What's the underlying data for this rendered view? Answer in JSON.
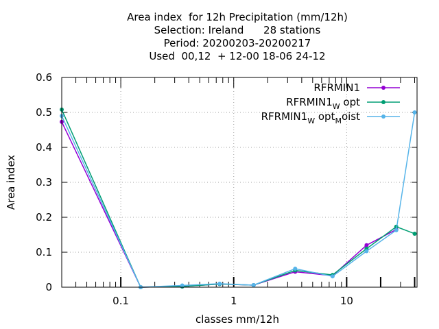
{
  "chart_data": {
    "type": "line",
    "title_lines": [
      "Area index  for 12h Precipitation (mm/12h)",
      "Selection: Ireland      28 stations",
      "Period: 20200203-20200217",
      "Used  00,12  + 12-00 18-06 24-12"
    ],
    "xlabel": "classes mm/12h",
    "ylabel": "Area index",
    "x_scale": "log",
    "xlim": [
      0.03,
      42
    ],
    "ylim": [
      0,
      0.6
    ],
    "x_ticks": [
      0.1,
      1,
      10
    ],
    "x_tick_labels": [
      "0.1",
      "1",
      "10"
    ],
    "y_ticks": [
      0,
      0.1,
      0.2,
      0.3,
      0.4,
      0.5,
      0.6
    ],
    "y_tick_labels": [
      "0",
      "0.1",
      "0.2",
      "0.3",
      "0.4",
      "0.5",
      "0.6"
    ],
    "grid": true,
    "legend_position": "top-right",
    "x": [
      0.03,
      0.15,
      0.35,
      0.75,
      1.5,
      3.5,
      7.5,
      15,
      27.5,
      40
    ],
    "series": [
      {
        "name_main": "RFRMIN1",
        "name_parts": [],
        "color": "#9400d3",
        "values": [
          0.473,
          0.0,
          0.002,
          0.009,
          0.006,
          0.044,
          0.033,
          0.12,
          0.165,
          null
        ]
      },
      {
        "name_main": "RFRMIN1",
        "name_parts": [
          [
            "W",
            "sub"
          ],
          [
            " opt",
            "normal"
          ]
        ],
        "color": "#009e73",
        "values": [
          0.508,
          0.0,
          0.002,
          0.009,
          0.006,
          0.048,
          0.035,
          0.11,
          0.173,
          0.153
        ]
      },
      {
        "name_main": "RFRMIN1",
        "name_parts": [
          [
            "W",
            "sub"
          ],
          [
            " opt",
            "normal"
          ],
          [
            "M",
            "sub"
          ],
          [
            "oist",
            "normal"
          ]
        ],
        "color": "#56b4e9",
        "values": [
          0.49,
          0.0,
          0.005,
          0.01,
          0.006,
          0.053,
          0.031,
          0.103,
          0.163,
          0.5
        ]
      }
    ]
  }
}
